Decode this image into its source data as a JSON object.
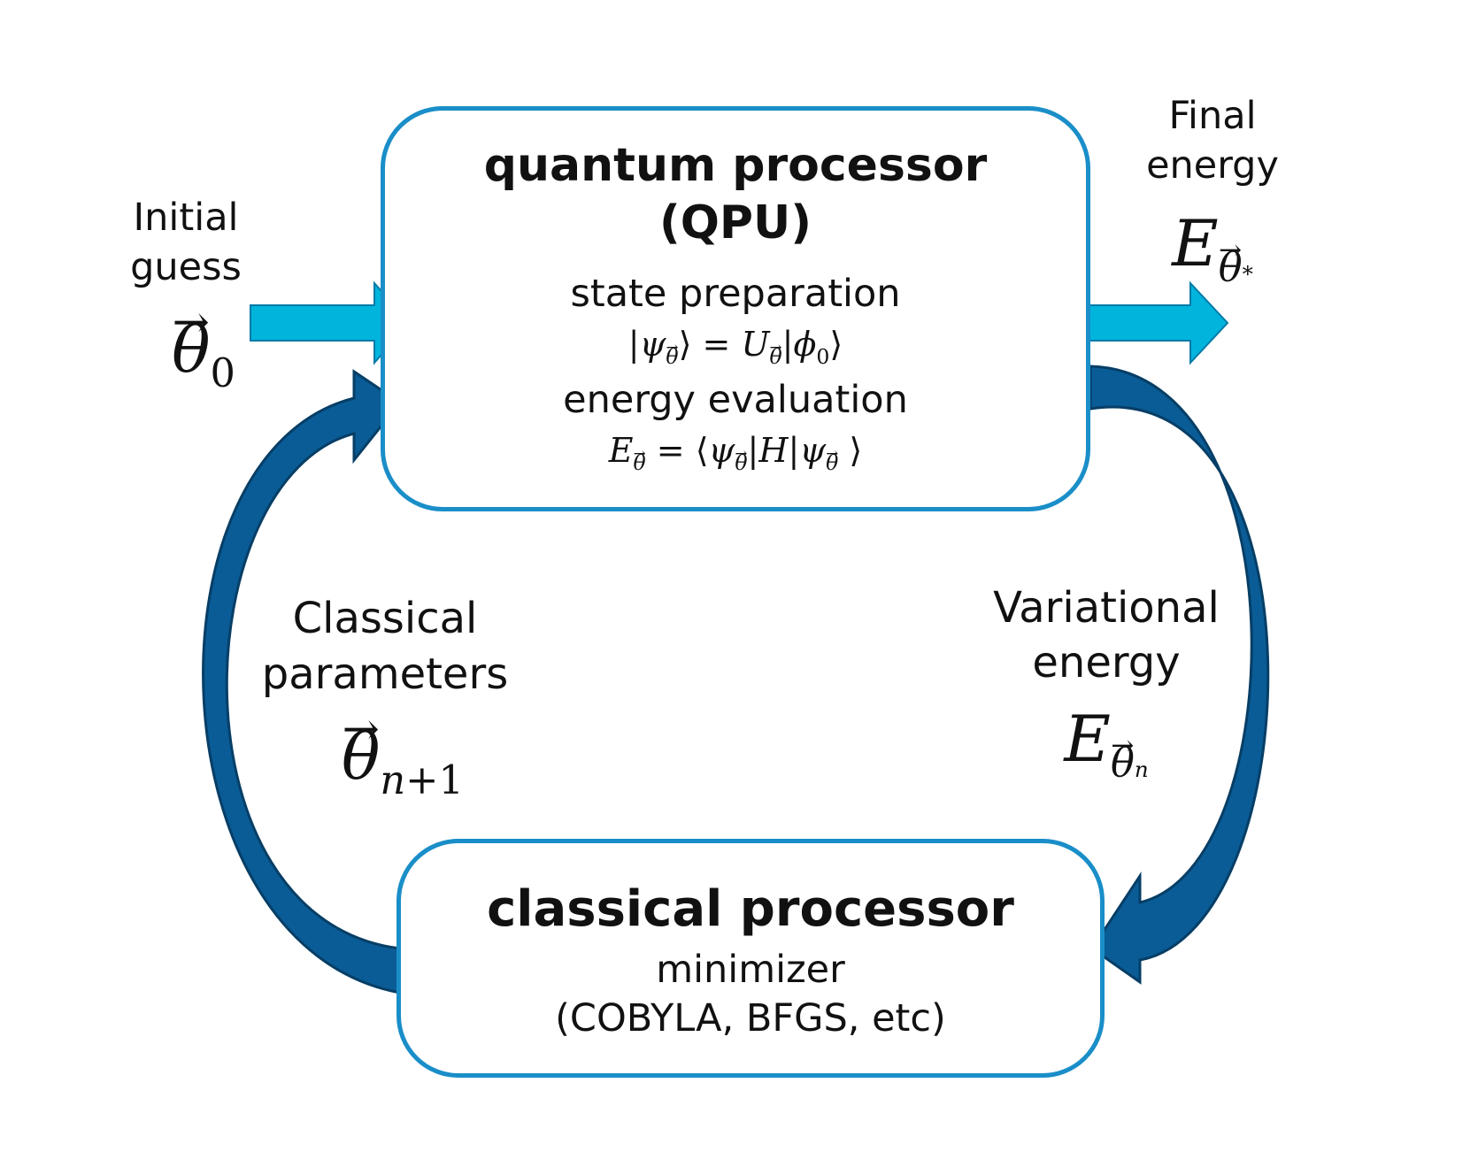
{
  "quantum_box": {
    "title_line1": "quantum processor",
    "title_line2": "(QPU)",
    "step1_label": "state preparation",
    "step2_label": "energy evaluation",
    "eq1": {
      "psi": "ψ",
      "theta": "θ",
      "eq": " = ",
      "U": "U",
      "phi": "ϕ",
      "zero": "0"
    },
    "eq2": {
      "E": "E",
      "theta": "θ",
      "eq": " = ",
      "psi": "ψ",
      "H": "H"
    }
  },
  "classical_box": {
    "title": "classical processor",
    "line1": "minimizer",
    "line2": "(COBYLA, BFGS, etc)"
  },
  "initial_guess": {
    "line1": "Initial",
    "line2": "guess",
    "symbol": "θ",
    "subscript": "0"
  },
  "final_energy": {
    "line1": "Final",
    "line2": "energy",
    "symbol": "E",
    "sub_symbol": "θ",
    "sup": "*"
  },
  "classical_parameters": {
    "line1": "Classical",
    "line2": "parameters",
    "symbol": "θ",
    "subscript_var": "n",
    "subscript_rest": "+1"
  },
  "variational_energy": {
    "line1": "Variational",
    "line2": "energy",
    "symbol": "E",
    "sub_symbol": "θ",
    "subscript": "n"
  },
  "colors": {
    "box_border": "#1a8ec8",
    "arrow_light": "#00b4dc",
    "arrow_dark": "#0a5c96"
  }
}
